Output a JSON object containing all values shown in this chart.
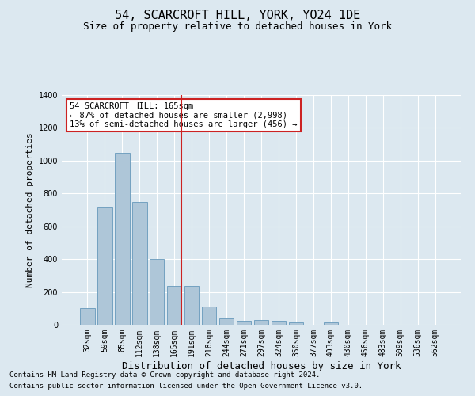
{
  "title1": "54, SCARCROFT HILL, YORK, YO24 1DE",
  "title2": "Size of property relative to detached houses in York",
  "xlabel": "Distribution of detached houses by size in York",
  "ylabel": "Number of detached properties",
  "categories": [
    "32sqm",
    "59sqm",
    "85sqm",
    "112sqm",
    "138sqm",
    "165sqm",
    "191sqm",
    "218sqm",
    "244sqm",
    "271sqm",
    "297sqm",
    "324sqm",
    "350sqm",
    "377sqm",
    "403sqm",
    "430sqm",
    "456sqm",
    "483sqm",
    "509sqm",
    "536sqm",
    "562sqm"
  ],
  "values": [
    100,
    720,
    1050,
    750,
    400,
    235,
    235,
    110,
    40,
    25,
    30,
    25,
    15,
    0,
    15,
    0,
    0,
    0,
    0,
    0,
    0
  ],
  "highlight_index": 5,
  "bar_color": "#aec6d8",
  "bar_edge_color": "#6699bb",
  "highlight_line_color": "#cc2222",
  "ylim": [
    0,
    1400
  ],
  "yticks": [
    0,
    200,
    400,
    600,
    800,
    1000,
    1200,
    1400
  ],
  "annotation_text": "54 SCARCROFT HILL: 165sqm\n← 87% of detached houses are smaller (2,998)\n13% of semi-detached houses are larger (456) →",
  "annotation_box_color": "#ffffff",
  "annotation_box_edge": "#cc2222",
  "footnote1": "Contains HM Land Registry data © Crown copyright and database right 2024.",
  "footnote2": "Contains public sector information licensed under the Open Government Licence v3.0.",
  "background_color": "#dce8f0",
  "plot_bg_color": "#dce8f0",
  "title1_fontsize": 11,
  "title2_fontsize": 9,
  "xlabel_fontsize": 9,
  "ylabel_fontsize": 8,
  "tick_fontsize": 7,
  "footnote_fontsize": 6.5,
  "annotation_fontsize": 7.5
}
